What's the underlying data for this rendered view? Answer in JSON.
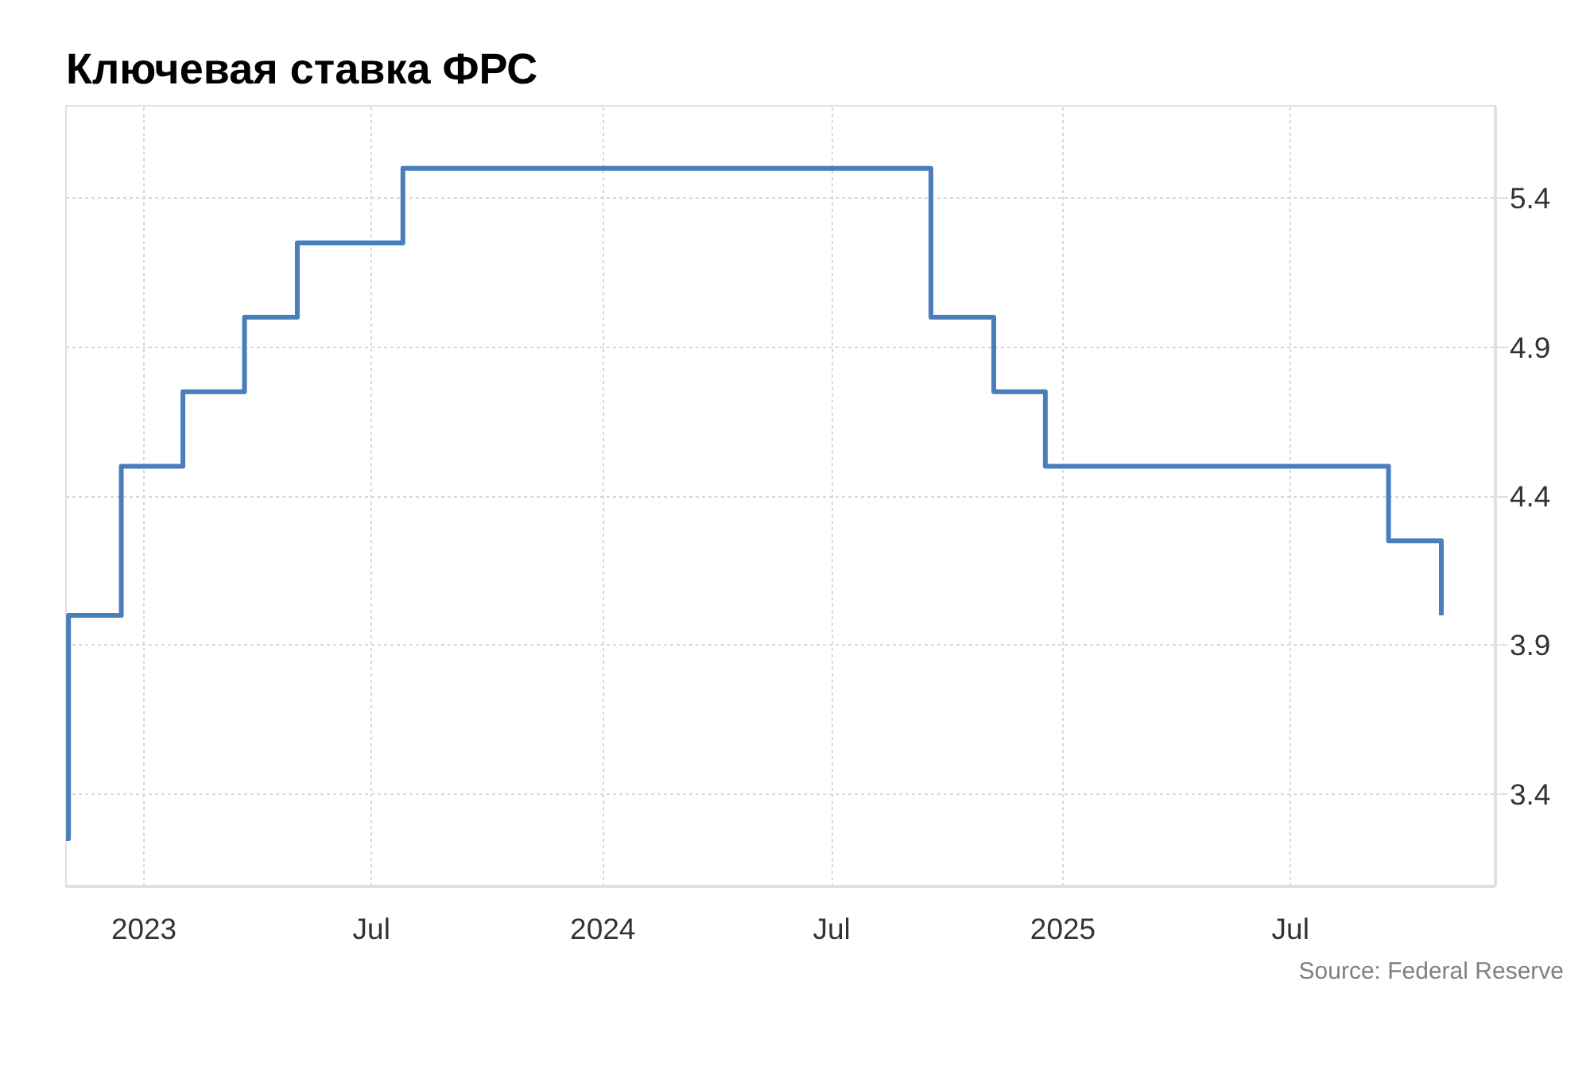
{
  "chart_data": {
    "type": "step",
    "title": "Ключевая ставка ФРС",
    "x": [
      "2022-10-31",
      "2022-11-02",
      "2022-12-14",
      "2023-02-01",
      "2023-03-22",
      "2023-05-03",
      "2023-07-26",
      "2024-09-18",
      "2024-11-07",
      "2024-12-18",
      "2025-09-17",
      "2025-10-29"
    ],
    "series": [
      {
        "color": "#4a7ebb",
        "values": [
          3.25,
          4.0,
          4.5,
          4.75,
          5.0,
          5.25,
          5.5,
          5.0,
          4.75,
          4.5,
          4.25,
          4.0
        ]
      }
    ],
    "xlim": [
      "2022-10-31",
      "2025-12-11"
    ],
    "xticks": [
      "2023",
      {
        "value": "2023-07",
        "label": "Jul"
      },
      "2024",
      {
        "value": "2024-07",
        "label": "Jul"
      },
      "2025",
      {
        "value": "2025-07",
        "label": "Jul"
      }
    ],
    "ylim": [
      3.09,
      5.71
    ],
    "yticks": [
      3.4,
      3.9,
      4.4,
      4.9,
      5.4
    ],
    "grid": true,
    "line_style": "solid",
    "annotations": [
      "Source: Federal Reserve"
    ]
  }
}
